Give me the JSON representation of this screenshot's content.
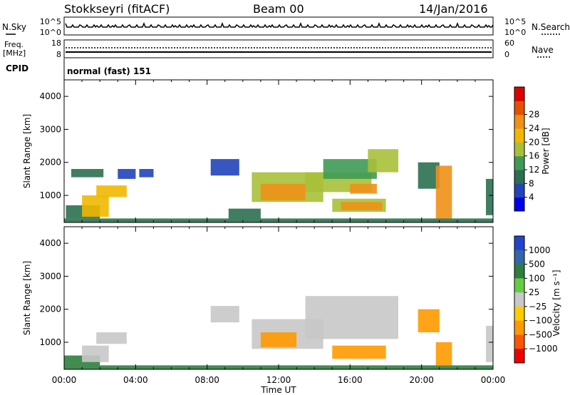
{
  "header": {
    "station": "Stokkseyri (fitACF)",
    "beam": "Beam 00",
    "date": "14/Jan/2016"
  },
  "panel_labels": {
    "nsky": "N.Sky",
    "nsearch": "N.Search",
    "freq_line1": "Freq.",
    "freq_line2": "[MHz]",
    "nave": "Nave",
    "cpid": "CPID",
    "cpid_value": "normal (fast) 151"
  },
  "small_axes": {
    "noise_ticks": [
      "10^5",
      "10^0"
    ],
    "freq_ticks": [
      "18",
      "8"
    ],
    "nave_ticks": [
      "60",
      "0"
    ]
  },
  "x_axis": {
    "label": "Time UT",
    "ticks": [
      "00:00",
      "04:00",
      "08:00",
      "12:00",
      "16:00",
      "20:00",
      "00:00"
    ]
  },
  "y_axis": {
    "label": "Slant Range [km]",
    "ticks": [
      "1000",
      "2000",
      "3000",
      "4000"
    ]
  },
  "colorbars": {
    "power": {
      "label": "Power [dB]",
      "ticks": [
        "4",
        "8",
        "12",
        "16",
        "20",
        "24",
        "28"
      ],
      "colors": [
        "#0000ee",
        "#2244bb",
        "#2a7050",
        "#3f9a55",
        "#a8c038",
        "#f0b800",
        "#f09018",
        "#e85000",
        "#dd0000"
      ]
    },
    "velocity": {
      "label": "Velocity [m s⁻¹]",
      "ticks": [
        "1000",
        "500",
        "100",
        "25",
        "−25",
        "−100",
        "−500",
        "−1000"
      ],
      "colors": [
        "#2244cc",
        "#3366aa",
        "#2e7e3e",
        "#66cc44",
        "#c8c8c8",
        "#ffcc00",
        "#ff9900",
        "#ff5500",
        "#ee0000"
      ]
    }
  },
  "chart_data": {
    "type": "heatmap",
    "x_unit": "hours UT",
    "xlim": [
      0,
      24
    ],
    "ylim": [
      180,
      4500
    ],
    "power_regions": [
      {
        "t0": 0.0,
        "t1": 24.0,
        "r0": 180,
        "r1": 300,
        "v": 8
      },
      {
        "t0": 0.1,
        "t1": 2.0,
        "r0": 300,
        "r1": 700,
        "v": 10
      },
      {
        "t0": 1.0,
        "t1": 2.5,
        "r0": 350,
        "r1": 1000,
        "v": 18
      },
      {
        "t0": 1.8,
        "t1": 3.5,
        "r0": 950,
        "r1": 1300,
        "v": 20
      },
      {
        "t0": 0.4,
        "t1": 2.2,
        "r0": 1550,
        "r1": 1800,
        "v": 8
      },
      {
        "t0": 3.0,
        "t1": 4.0,
        "r0": 1500,
        "r1": 1800,
        "v": 6
      },
      {
        "t0": 4.2,
        "t1": 5.0,
        "r0": 1550,
        "r1": 1800,
        "v": 5
      },
      {
        "t0": 8.2,
        "t1": 9.8,
        "r0": 1600,
        "r1": 2100,
        "v": 6
      },
      {
        "t0": 9.2,
        "t1": 11.0,
        "r0": 300,
        "r1": 600,
        "v": 10
      },
      {
        "t0": 10.5,
        "t1": 14.5,
        "r0": 800,
        "r1": 1700,
        "v": 16
      },
      {
        "t0": 11.0,
        "t1": 13.5,
        "r0": 850,
        "r1": 1350,
        "v": 24
      },
      {
        "t0": 13.5,
        "t1": 17.2,
        "r0": 1100,
        "r1": 1700,
        "v": 14
      },
      {
        "t0": 14.5,
        "t1": 17.5,
        "r0": 1500,
        "r1": 2100,
        "v": 12
      },
      {
        "t0": 16.0,
        "t1": 17.5,
        "r0": 1050,
        "r1": 1350,
        "v": 22
      },
      {
        "t0": 17.0,
        "t1": 18.7,
        "r0": 1700,
        "r1": 2400,
        "v": 14
      },
      {
        "t0": 15.0,
        "t1": 18.0,
        "r0": 500,
        "r1": 900,
        "v": 16
      },
      {
        "t0": 15.5,
        "t1": 17.8,
        "r0": 550,
        "r1": 800,
        "v": 21
      },
      {
        "t0": 19.8,
        "t1": 21.0,
        "r0": 1200,
        "r1": 2000,
        "v": 10
      },
      {
        "t0": 20.8,
        "t1": 21.7,
        "r0": 300,
        "r1": 1900,
        "v": 24
      },
      {
        "t0": 23.6,
        "t1": 24.0,
        "r0": 400,
        "r1": 1500,
        "v": 8
      }
    ],
    "velocity_regions": [
      {
        "t0": 0.0,
        "t1": 24.0,
        "r0": 180,
        "r1": 300,
        "v": 60
      },
      {
        "t0": 0.0,
        "t1": 2.0,
        "r0": 300,
        "r1": 600,
        "v": 60
      },
      {
        "t0": 1.0,
        "t1": 2.5,
        "r0": 400,
        "r1": 900,
        "v": 0
      },
      {
        "t0": 1.8,
        "t1": 3.5,
        "r0": 950,
        "r1": 1300,
        "v": 0
      },
      {
        "t0": 8.2,
        "t1": 9.8,
        "r0": 1600,
        "r1": 2100,
        "v": 0
      },
      {
        "t0": 10.5,
        "t1": 14.5,
        "r0": 800,
        "r1": 1700,
        "v": 0
      },
      {
        "t0": 11.0,
        "t1": 13.0,
        "r0": 850,
        "r1": 1300,
        "v": -80
      },
      {
        "t0": 13.5,
        "t1": 18.7,
        "r0": 1100,
        "r1": 2400,
        "v": 0
      },
      {
        "t0": 15.0,
        "t1": 18.0,
        "r0": 500,
        "r1": 900,
        "v": -300
      },
      {
        "t0": 19.8,
        "t1": 21.0,
        "r0": 1300,
        "r1": 2000,
        "v": -150
      },
      {
        "t0": 20.8,
        "t1": 21.7,
        "r0": 300,
        "r1": 1000,
        "v": -300
      },
      {
        "t0": 23.6,
        "t1": 24.0,
        "r0": 400,
        "r1": 1500,
        "v": 0
      }
    ]
  }
}
